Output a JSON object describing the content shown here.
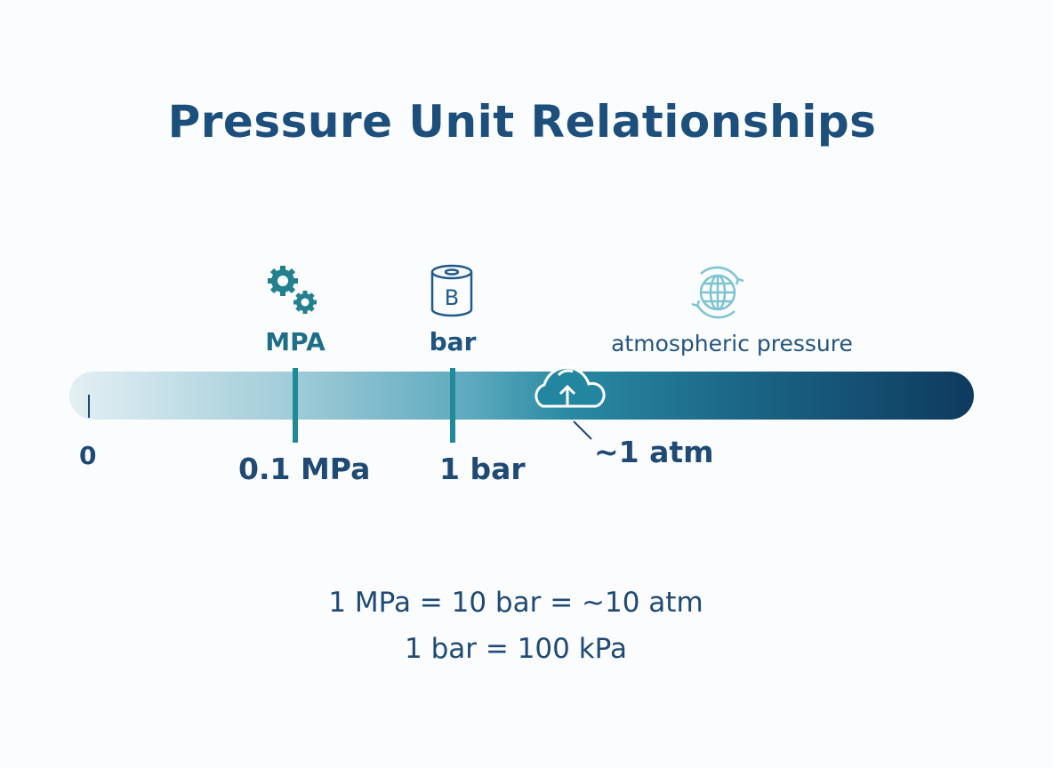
{
  "title": "Pressure Unit Relationships",
  "scale": {
    "zero_label": "0",
    "markers": [
      {
        "top_label": "MPA",
        "value_label": "0.1 MPa",
        "icon": "gears-icon"
      },
      {
        "top_label": "bar",
        "value_label": "1 bar",
        "icon": "cylinder-b-icon",
        "icon_letter": "B"
      },
      {
        "top_label": "atmospheric pressure",
        "value_label": "~1 atm",
        "icon": "globe-cycle-icon",
        "bar_icon": "cloud-upload-icon"
      }
    ]
  },
  "equations": [
    "1 MPa = 10 bar = ~10 atm",
    "1 bar = 100 kPa"
  ],
  "colors": {
    "title": "#1d4f7c",
    "teal": "#1f8a98",
    "bar_start": "#e3f0f4",
    "bar_end": "#0e3a5e",
    "globe": "#7cc4d2"
  }
}
